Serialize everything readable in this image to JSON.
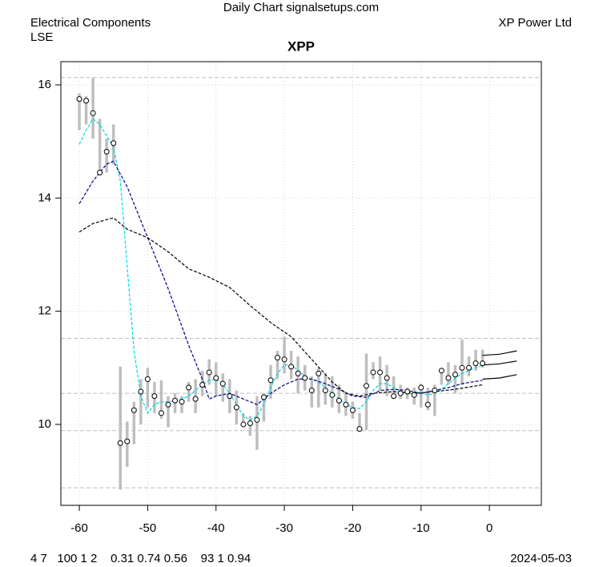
{
  "header": {
    "site": "Daily Chart signalsetups.com",
    "sector": "Electrical Components",
    "exchange": "LSE",
    "company": "XP Power Ltd"
  },
  "footer": {
    "params": "4 7   100 1 2    0.31 0.74 0.56    93 1 0.94",
    "date": "2024-05-03"
  },
  "chart_data": {
    "type": "range-bar",
    "title": "XPP",
    "xlim": [
      -62.7,
      7.6
    ],
    "ylim": [
      8.57,
      16.41
    ],
    "xticks": [
      -60,
      -50,
      -40,
      -30,
      -20,
      -10,
      0
    ],
    "yticks": [
      10,
      12,
      14,
      16
    ],
    "grid": true,
    "bar_color": "#bebebe",
    "point_color": "#000000",
    "x": [
      -60,
      -59,
      -58,
      -57,
      -56,
      -55,
      -54,
      -53,
      -52,
      -51,
      -50,
      -49,
      -48,
      -47,
      -46,
      -45,
      -44,
      -43,
      -42,
      -41,
      -40,
      -39,
      -38,
      -37,
      -36,
      -35,
      -34,
      -33,
      -32,
      -31,
      -30,
      -29,
      -28,
      -27,
      -26,
      -25,
      -24,
      -23,
      -22,
      -21,
      -20,
      -19,
      -18,
      -17,
      -16,
      -15,
      -14,
      -13,
      -12,
      -11,
      -10,
      -9,
      -8,
      -7,
      -6,
      -5,
      -4,
      -3,
      -2,
      -1
    ],
    "close": [
      15.75,
      15.72,
      15.5,
      14.45,
      14.82,
      14.97,
      9.67,
      9.7,
      10.25,
      10.58,
      10.8,
      10.5,
      10.2,
      10.35,
      10.42,
      10.4,
      10.65,
      10.45,
      10.7,
      10.92,
      10.82,
      10.72,
      10.5,
      10.3,
      10.0,
      10.02,
      10.08,
      10.48,
      10.78,
      11.18,
      11.15,
      11.02,
      10.9,
      10.82,
      10.6,
      10.9,
      10.6,
      10.52,
      10.42,
      10.35,
      10.25,
      9.92,
      10.68,
      10.92,
      10.92,
      10.82,
      10.5,
      10.55,
      10.58,
      10.52,
      10.65,
      10.35,
      10.6,
      10.95,
      10.82,
      10.88,
      11.0,
      11.0,
      11.08,
      11.08
    ],
    "high": [
      15.85,
      15.8,
      16.12,
      15.4,
      15.05,
      15.3,
      11.02,
      10.05,
      10.4,
      10.8,
      11.0,
      10.75,
      10.78,
      10.5,
      10.55,
      10.5,
      10.75,
      10.8,
      10.95,
      11.15,
      11.1,
      10.9,
      10.8,
      10.6,
      10.2,
      10.15,
      10.5,
      10.55,
      11.05,
      11.3,
      11.55,
      11.3,
      11.2,
      11.05,
      10.85,
      11.0,
      10.9,
      10.85,
      10.7,
      10.55,
      10.4,
      10.2,
      11.25,
      11.1,
      11.2,
      11.05,
      10.85,
      10.7,
      10.65,
      10.65,
      10.72,
      10.65,
      10.7,
      11.0,
      11.1,
      11.05,
      11.5,
      11.2,
      11.32,
      11.32
    ],
    "low": [
      15.2,
      15.3,
      15.05,
      14.4,
      14.45,
      14.6,
      8.85,
      9.25,
      9.65,
      10.0,
      10.3,
      10.2,
      10.1,
      9.95,
      10.2,
      10.2,
      10.4,
      10.2,
      10.5,
      10.7,
      10.5,
      10.4,
      10.2,
      10.0,
      9.95,
      9.8,
      9.55,
      10.05,
      10.45,
      10.8,
      10.9,
      10.8,
      10.55,
      10.6,
      10.3,
      10.3,
      10.35,
      10.3,
      10.2,
      10.15,
      10.1,
      9.88,
      9.9,
      10.8,
      10.6,
      10.5,
      10.45,
      10.45,
      10.45,
      10.35,
      10.3,
      10.25,
      10.15,
      10.7,
      10.7,
      10.55,
      10.7,
      10.85,
      10.95,
      11.0
    ],
    "hlines": [
      16.13,
      11.52,
      10.55,
      9.89,
      8.88
    ],
    "hline_color": "#bebebe",
    "series": [
      {
        "color": "#00d8e0",
        "linestyle": "dashed",
        "x": [
          -60,
          -59,
          -58,
          -57,
          -56,
          -55,
          -54,
          -53,
          -52,
          -51,
          -50,
          -49,
          -48,
          -47,
          -46,
          -45,
          -44,
          -43,
          -42,
          -41,
          -40,
          -39,
          -38,
          -37,
          -36,
          -35,
          -34,
          -33,
          -32,
          -31,
          -30,
          -29,
          -28,
          -27,
          -26,
          -25,
          -24,
          -23,
          -22,
          -21,
          -20,
          -19,
          -18,
          -17,
          -16,
          -15,
          -14,
          -13,
          -12,
          -11,
          -10,
          -9,
          -8,
          -7,
          -6,
          -5,
          -4,
          -3,
          -2,
          -1
        ],
        "values": [
          14.95,
          15.2,
          15.4,
          15.3,
          15.1,
          14.9,
          14.3,
          12.8,
          11.3,
          10.5,
          10.2,
          10.35,
          10.4,
          10.4,
          10.42,
          10.45,
          10.5,
          10.6,
          10.7,
          10.78,
          10.8,
          10.7,
          10.55,
          10.35,
          10.15,
          10.08,
          10.15,
          10.35,
          10.65,
          10.9,
          11.05,
          11.05,
          10.95,
          10.85,
          10.8,
          10.75,
          10.65,
          10.55,
          10.45,
          10.35,
          10.3,
          10.28,
          10.4,
          10.6,
          10.72,
          10.72,
          10.65,
          10.58,
          10.55,
          10.55,
          10.55,
          10.52,
          10.55,
          10.62,
          10.72,
          10.82,
          10.9,
          10.95,
          11.0,
          11.05
        ]
      },
      {
        "color": "#00008b",
        "linestyle": "dashed",
        "x": [
          -60,
          -58,
          -56,
          -55,
          -53,
          -50,
          -47,
          -44,
          -42,
          -41,
          -40,
          -38,
          -36,
          -34,
          -32,
          -30,
          -28,
          -26,
          -24,
          -22,
          -20,
          -18,
          -16,
          -14,
          -12,
          -10,
          -8,
          -6,
          -4,
          -1
        ],
        "values": [
          13.9,
          14.3,
          14.6,
          14.65,
          14.2,
          13.3,
          12.4,
          11.4,
          10.8,
          10.45,
          10.5,
          10.55,
          10.45,
          10.35,
          10.55,
          10.7,
          10.8,
          10.8,
          10.72,
          10.62,
          10.5,
          10.48,
          10.6,
          10.62,
          10.6,
          10.55,
          10.6,
          10.65,
          10.72,
          10.78
        ]
      },
      {
        "color": "#000000",
        "linestyle": "dashed",
        "x": [
          -60,
          -58,
          -56,
          -55,
          -53,
          -50,
          -47,
          -44,
          -41,
          -38,
          -35,
          -32,
          -29,
          -26,
          -23,
          -21,
          -19,
          -17,
          -14,
          -11,
          -8,
          -5,
          -1
        ],
        "values": [
          13.4,
          13.55,
          13.62,
          13.65,
          13.45,
          13.3,
          13.05,
          12.75,
          12.6,
          12.42,
          12.1,
          11.8,
          11.55,
          11.15,
          10.75,
          10.55,
          10.5,
          10.55,
          10.58,
          10.55,
          10.58,
          10.62,
          10.7
        ]
      },
      {
        "color": "#000000",
        "linestyle": "solid",
        "x": [
          -1,
          1.5,
          4
        ],
        "values": [
          11.22,
          11.24,
          11.3
        ]
      },
      {
        "color": "#000000",
        "linestyle": "solid",
        "x": [
          -1,
          1.5,
          4
        ],
        "values": [
          11.05,
          11.07,
          11.12
        ]
      },
      {
        "color": "#000000",
        "linestyle": "solid",
        "x": [
          -1,
          1.5,
          4
        ],
        "values": [
          10.8,
          10.82,
          10.88
        ]
      }
    ]
  }
}
